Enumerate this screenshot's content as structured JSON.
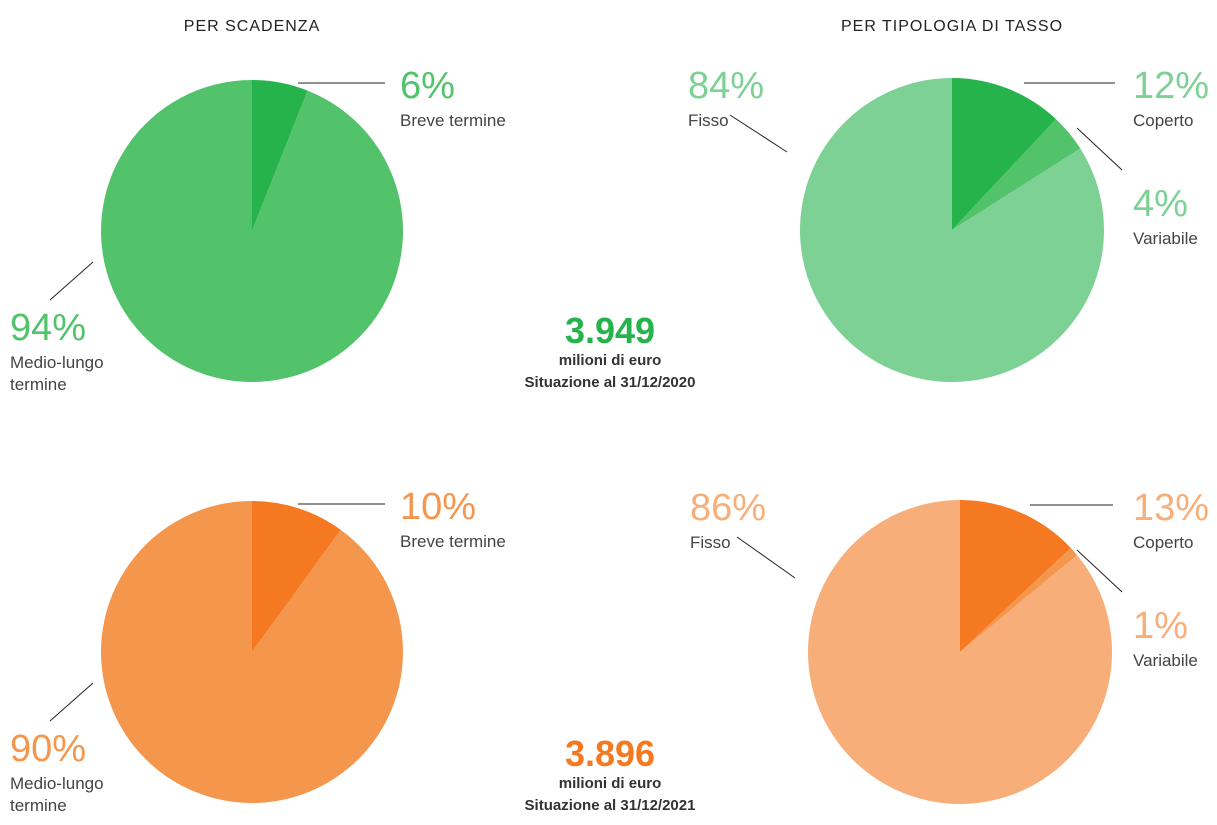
{
  "headers": [
    "PER SCADENZA",
    "PER TIPOLOGIA DI TASSO"
  ],
  "summaries": [
    {
      "total": "3.949",
      "unit": "milioni di euro",
      "date": "Situazione al 31/12/2020"
    },
    {
      "total": "3.896",
      "unit": "milioni di euro",
      "date": "Situazione al 31/12/2021"
    }
  ],
  "chart_data": [
    {
      "type": "pie",
      "categories": [
        "Breve termine",
        "Medio-lungo termine"
      ],
      "values": [
        6,
        94
      ],
      "value_labels": [
        "6%",
        "94%"
      ],
      "colors": [
        "#27b34b",
        "#52c26b"
      ]
    },
    {
      "type": "pie",
      "categories": [
        "Coperto",
        "Variabile",
        "Fisso"
      ],
      "values": [
        12,
        4,
        84
      ],
      "value_labels": [
        "12%",
        "4%",
        "84%"
      ],
      "colors": [
        "#27b34b",
        "#52c26b",
        "#7dd194"
      ]
    },
    {
      "type": "pie",
      "categories": [
        "Breve termine",
        "Medio-lungo termine"
      ],
      "values": [
        10,
        90
      ],
      "value_labels": [
        "10%",
        "90%"
      ],
      "colors": [
        "#f47920",
        "#f5964d"
      ]
    },
    {
      "type": "pie",
      "categories": [
        "Coperto",
        "Variabile",
        "Fisso"
      ],
      "values": [
        13,
        1,
        86
      ],
      "value_labels": [
        "13%",
        "1%",
        "86%"
      ],
      "colors": [
        "#f47920",
        "#f5964d",
        "#f7ae79"
      ]
    }
  ]
}
